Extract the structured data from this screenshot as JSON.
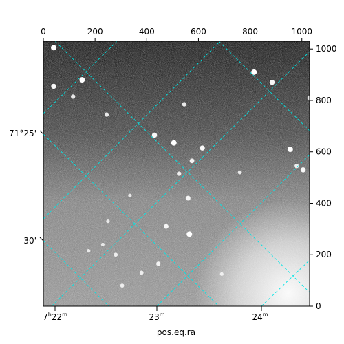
{
  "chart_data": {
    "type": "image",
    "xlabel": "pos.eq.ra",
    "pixel_axes": {
      "x_range": [
        0,
        1030
      ],
      "y_range": [
        0,
        1030
      ],
      "x_ticks": [
        0,
        200,
        400,
        600,
        800,
        1000
      ],
      "y_ticks": [
        0,
        200,
        400,
        600,
        800,
        1000
      ]
    },
    "ra_labels": [
      {
        "h": "7",
        "h_unit": "h",
        "m": "22",
        "m_unit": "m"
      },
      {
        "h": "",
        "h_unit": "",
        "m": "23",
        "m_unit": "m"
      },
      {
        "h": "",
        "h_unit": "",
        "m": "24",
        "m_unit": "m"
      }
    ],
    "dec_labels": [
      "71°25'",
      "30'"
    ],
    "grid": true,
    "grid_color": "#00e5e5",
    "image_style": "grayscale noisy astronomical field, dark top to lighter bottom, bright patch lower-right",
    "stars": [
      {
        "x": 40,
        "y": 1005,
        "b": 1.0
      },
      {
        "x": 150,
        "y": 880,
        "b": 1.0
      },
      {
        "x": 40,
        "y": 855,
        "b": 0.9
      },
      {
        "x": 115,
        "y": 815,
        "b": 0.7
      },
      {
        "x": 245,
        "y": 745,
        "b": 0.7
      },
      {
        "x": 545,
        "y": 785,
        "b": 0.7
      },
      {
        "x": 815,
        "y": 910,
        "b": 1.0
      },
      {
        "x": 885,
        "y": 870,
        "b": 0.9
      },
      {
        "x": 1030,
        "y": 810,
        "b": 0.7
      },
      {
        "x": 430,
        "y": 665,
        "b": 0.9
      },
      {
        "x": 505,
        "y": 635,
        "b": 1.0
      },
      {
        "x": 615,
        "y": 615,
        "b": 0.9
      },
      {
        "x": 575,
        "y": 565,
        "b": 0.8
      },
      {
        "x": 525,
        "y": 515,
        "b": 0.7
      },
      {
        "x": 760,
        "y": 520,
        "b": 0.6
      },
      {
        "x": 955,
        "y": 610,
        "b": 1.0
      },
      {
        "x": 1005,
        "y": 530,
        "b": 0.9
      },
      {
        "x": 980,
        "y": 545,
        "b": 0.7
      },
      {
        "x": 560,
        "y": 420,
        "b": 0.8
      },
      {
        "x": 335,
        "y": 430,
        "b": 0.5
      },
      {
        "x": 250,
        "y": 330,
        "b": 0.5
      },
      {
        "x": 475,
        "y": 310,
        "b": 0.8
      },
      {
        "x": 565,
        "y": 280,
        "b": 1.0
      },
      {
        "x": 280,
        "y": 200,
        "b": 0.6
      },
      {
        "x": 445,
        "y": 165,
        "b": 0.7
      },
      {
        "x": 380,
        "y": 130,
        "b": 0.6
      },
      {
        "x": 690,
        "y": 125,
        "b": 0.5
      },
      {
        "x": 305,
        "y": 80,
        "b": 0.6
      },
      {
        "x": 230,
        "y": 240,
        "b": 0.5
      },
      {
        "x": 175,
        "y": 215,
        "b": 0.5
      }
    ]
  }
}
